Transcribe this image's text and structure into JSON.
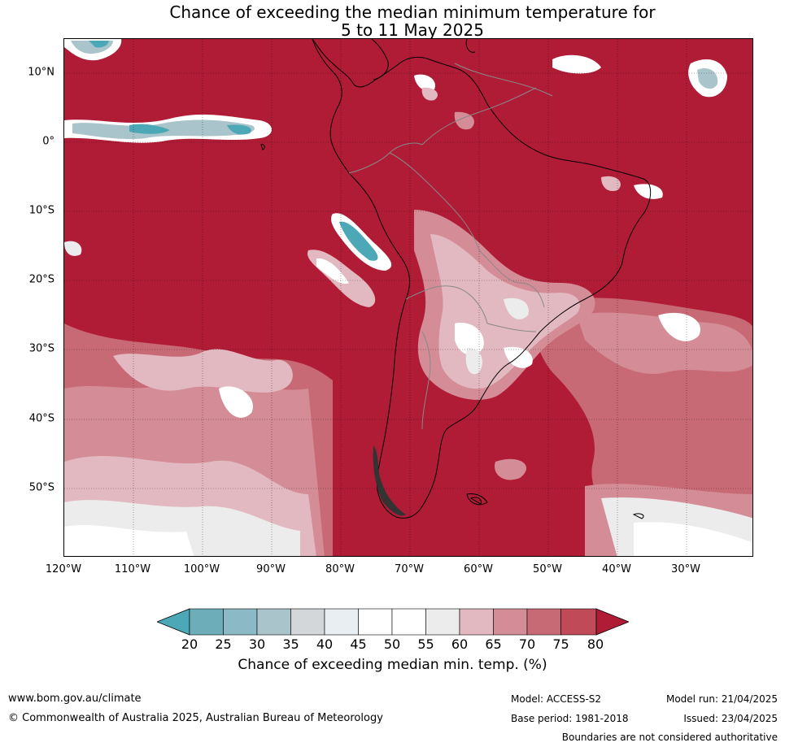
{
  "title_line1": "Chance of exceeding the median minimum temperature for",
  "title_line2": "5 to 11 May 2025",
  "latitude_labels": [
    "10°N",
    "0°",
    "10°S",
    "20°S",
    "30°S",
    "40°S",
    "50°S"
  ],
  "longitude_labels": [
    "120°W",
    "110°W",
    "100°W",
    "90°W",
    "80°W",
    "70°W",
    "60°W",
    "50°W",
    "40°W",
    "30°W"
  ],
  "legend": {
    "ticks": [
      "20",
      "25",
      "30",
      "35",
      "40",
      "45",
      "50",
      "55",
      "60",
      "65",
      "70",
      "75",
      "80"
    ],
    "colors": [
      "#4ca7b6",
      "#6dadba",
      "#8bb9c6",
      "#a9c4cb",
      "#d3d7da",
      "#e8eef1",
      "#ffffff",
      "#ffffff",
      "#ececec",
      "#e2b9c0",
      "#d48c96",
      "#c86a75",
      "#c04a57",
      "#b01c36"
    ],
    "label": "Chance of exceeding median min. temp. (%)"
  },
  "footer": {
    "website": "www.bom.gov.au/climate",
    "copyright": "© Commonwealth of Australia 2025, Australian Bureau of Meteorology",
    "model": "Model: ACCESS-S2",
    "base_period": "Base period: 1981-2018",
    "model_run": "Model run: 21/04/2025",
    "issued": "Issued: 23/04/2025",
    "disclaimer": "Boundaries are not considered authoritative"
  }
}
